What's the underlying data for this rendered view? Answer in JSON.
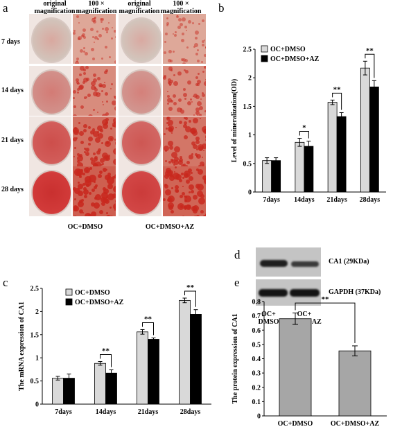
{
  "panels": {
    "a": {
      "letter": "a",
      "headers": [
        "original magnification",
        "100 × magnification",
        "original magnification",
        "100 × magnification"
      ],
      "rows": [
        "7 days",
        "14 days",
        "21 days",
        "28 days"
      ],
      "groups": [
        "OC+DMSO",
        "OC+DMSO+AZ"
      ],
      "stain_color": "#c8281e"
    },
    "b": {
      "letter": "b"
    },
    "c": {
      "letter": "c"
    },
    "d": {
      "letter": "d",
      "bands": [
        "CA1 (29KDa)",
        "GAPDH (37KDa)"
      ],
      "lanes": [
        "OC+ DMSO",
        "OC+ DMSO+AZ"
      ]
    },
    "e": {
      "letter": "e"
    }
  },
  "chart_data": [
    {
      "id": "b",
      "type": "bar",
      "categories": [
        "7days",
        "14days",
        "21days",
        "28days"
      ],
      "series": [
        {
          "name": "OC+DMSO",
          "values": [
            0.55,
            0.87,
            1.57,
            2.17
          ],
          "errors": [
            0.05,
            0.07,
            0.04,
            0.12
          ],
          "color": "#d9d9d9"
        },
        {
          "name": "OC+DMSO+AZ",
          "values": [
            0.55,
            0.8,
            1.32,
            1.84
          ],
          "errors": [
            0.05,
            0.09,
            0.07,
            0.11
          ],
          "color": "#000000"
        }
      ],
      "significance": [
        null,
        "*",
        "**",
        "**"
      ],
      "ylabel": "Level of mineralization(OD)",
      "ylim": [
        0,
        2.5
      ],
      "yticks": [
        "0",
        "0.5",
        "1",
        "1.5",
        "2",
        "2.5"
      ],
      "legend": "top-left"
    },
    {
      "id": "c",
      "type": "bar",
      "categories": [
        "7days",
        "14days",
        "21days",
        "28days"
      ],
      "series": [
        {
          "name": "OC+DMSO",
          "values": [
            0.56,
            0.88,
            1.56,
            2.24
          ],
          "errors": [
            0.04,
            0.04,
            0.05,
            0.05
          ],
          "color": "#d9d9d9"
        },
        {
          "name": "OC+DMSO+AZ",
          "values": [
            0.56,
            0.67,
            1.4,
            1.94
          ],
          "errors": [
            0.09,
            0.07,
            0.03,
            0.1
          ],
          "color": "#000000"
        }
      ],
      "significance": [
        null,
        "**",
        "**",
        "**"
      ],
      "ylabel": "The mRNA expression of CA1",
      "ylim": [
        0,
        2.5
      ],
      "yticks": [
        "0",
        "0.5",
        "1",
        "1.5",
        "2",
        "2.5"
      ],
      "legend": "top-left"
    },
    {
      "id": "e",
      "type": "bar",
      "categories": [
        "OC+DMSO",
        "OC+DMSO+AZ"
      ],
      "series": [
        {
          "name": "",
          "values": [
            0.68,
            0.455
          ],
          "errors": [
            0.04,
            0.035
          ],
          "color": "#a6a6a6"
        }
      ],
      "significance": [
        "**"
      ],
      "ylabel": "The protein expression of CA1",
      "ylim": [
        0,
        0.8
      ],
      "yticks": [
        "0",
        "0.1",
        "0.2",
        "0.3",
        "0.4",
        "0.5",
        "0.6",
        "0.7",
        "0.8"
      ]
    }
  ]
}
